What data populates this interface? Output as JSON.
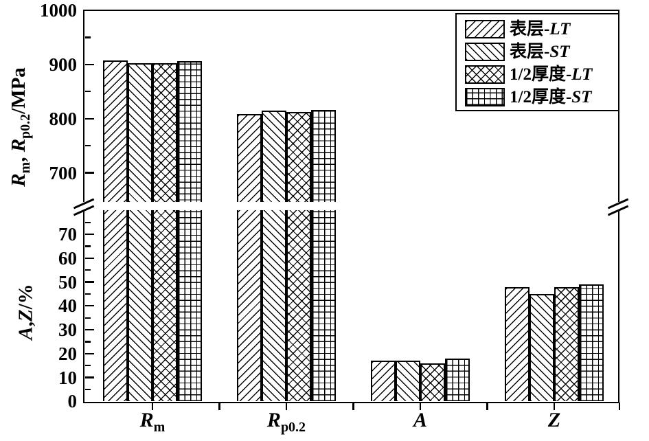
{
  "chart_data": {
    "type": "bar",
    "title": "",
    "categories": [
      "Rm",
      "Rp0.2",
      "A",
      "Z"
    ],
    "category_labels": [
      {
        "base": "R",
        "sub": "m"
      },
      {
        "base": "R",
        "sub": "p0.2"
      },
      {
        "base": "A",
        "sub": ""
      },
      {
        "base": "Z",
        "sub": ""
      }
    ],
    "series": [
      {
        "name": "表层-LT",
        "pattern": "diagonal-forward",
        "values": [
          907,
          809,
          17,
          48
        ]
      },
      {
        "name": "表层-ST",
        "pattern": "diagonal-backward",
        "values": [
          902,
          815,
          17,
          45
        ]
      },
      {
        "name": "1/2厚度-LT",
        "pattern": "crosshatch",
        "values": [
          902,
          812,
          16,
          48
        ]
      },
      {
        "name": "1/2厚度-ST",
        "pattern": "grid",
        "values": [
          906,
          816,
          18,
          49
        ]
      }
    ],
    "broken_axis": true,
    "top_panel": {
      "ylabel": "Rm, Rp0.2/MPa",
      "unit": "MPa",
      "ylim": [
        650,
        1000
      ],
      "major_ticks": [
        1000,
        900,
        800,
        700
      ],
      "minor_ticks": [
        950,
        850,
        750
      ]
    },
    "bottom_panel": {
      "ylabel": "A,Z/%",
      "unit": "%",
      "ylim": [
        0,
        80
      ],
      "major_ticks": [
        70,
        60,
        50,
        40,
        30,
        20,
        10,
        0
      ],
      "minor_ticks": [
        75,
        65,
        55,
        45,
        35,
        25,
        15,
        5
      ]
    },
    "legend_position": "top-right",
    "grid": false
  },
  "labels": {
    "y_top": {
      "r1": "R",
      "sub1": "m",
      "comma": ", ",
      "r2": "R",
      "sub2": "p0.2",
      "unit": "/MPa"
    },
    "y_bottom": {
      "a": "A",
      "comma": ",",
      "z": "Z",
      "unit": "/%"
    }
  },
  "legend": {
    "items": [
      {
        "prefix": "表层-",
        "suffix": "LT",
        "pattern": "diagonal-forward"
      },
      {
        "prefix": "表层-",
        "suffix": "ST",
        "pattern": "diagonal-backward"
      },
      {
        "prefix": "1/2厚度-",
        "suffix": "LT",
        "pattern": "crosshatch"
      },
      {
        "prefix": "1/2厚度-",
        "suffix": "ST",
        "pattern": "grid"
      }
    ]
  },
  "colors": {
    "ink": "#000000",
    "background": "#ffffff"
  }
}
